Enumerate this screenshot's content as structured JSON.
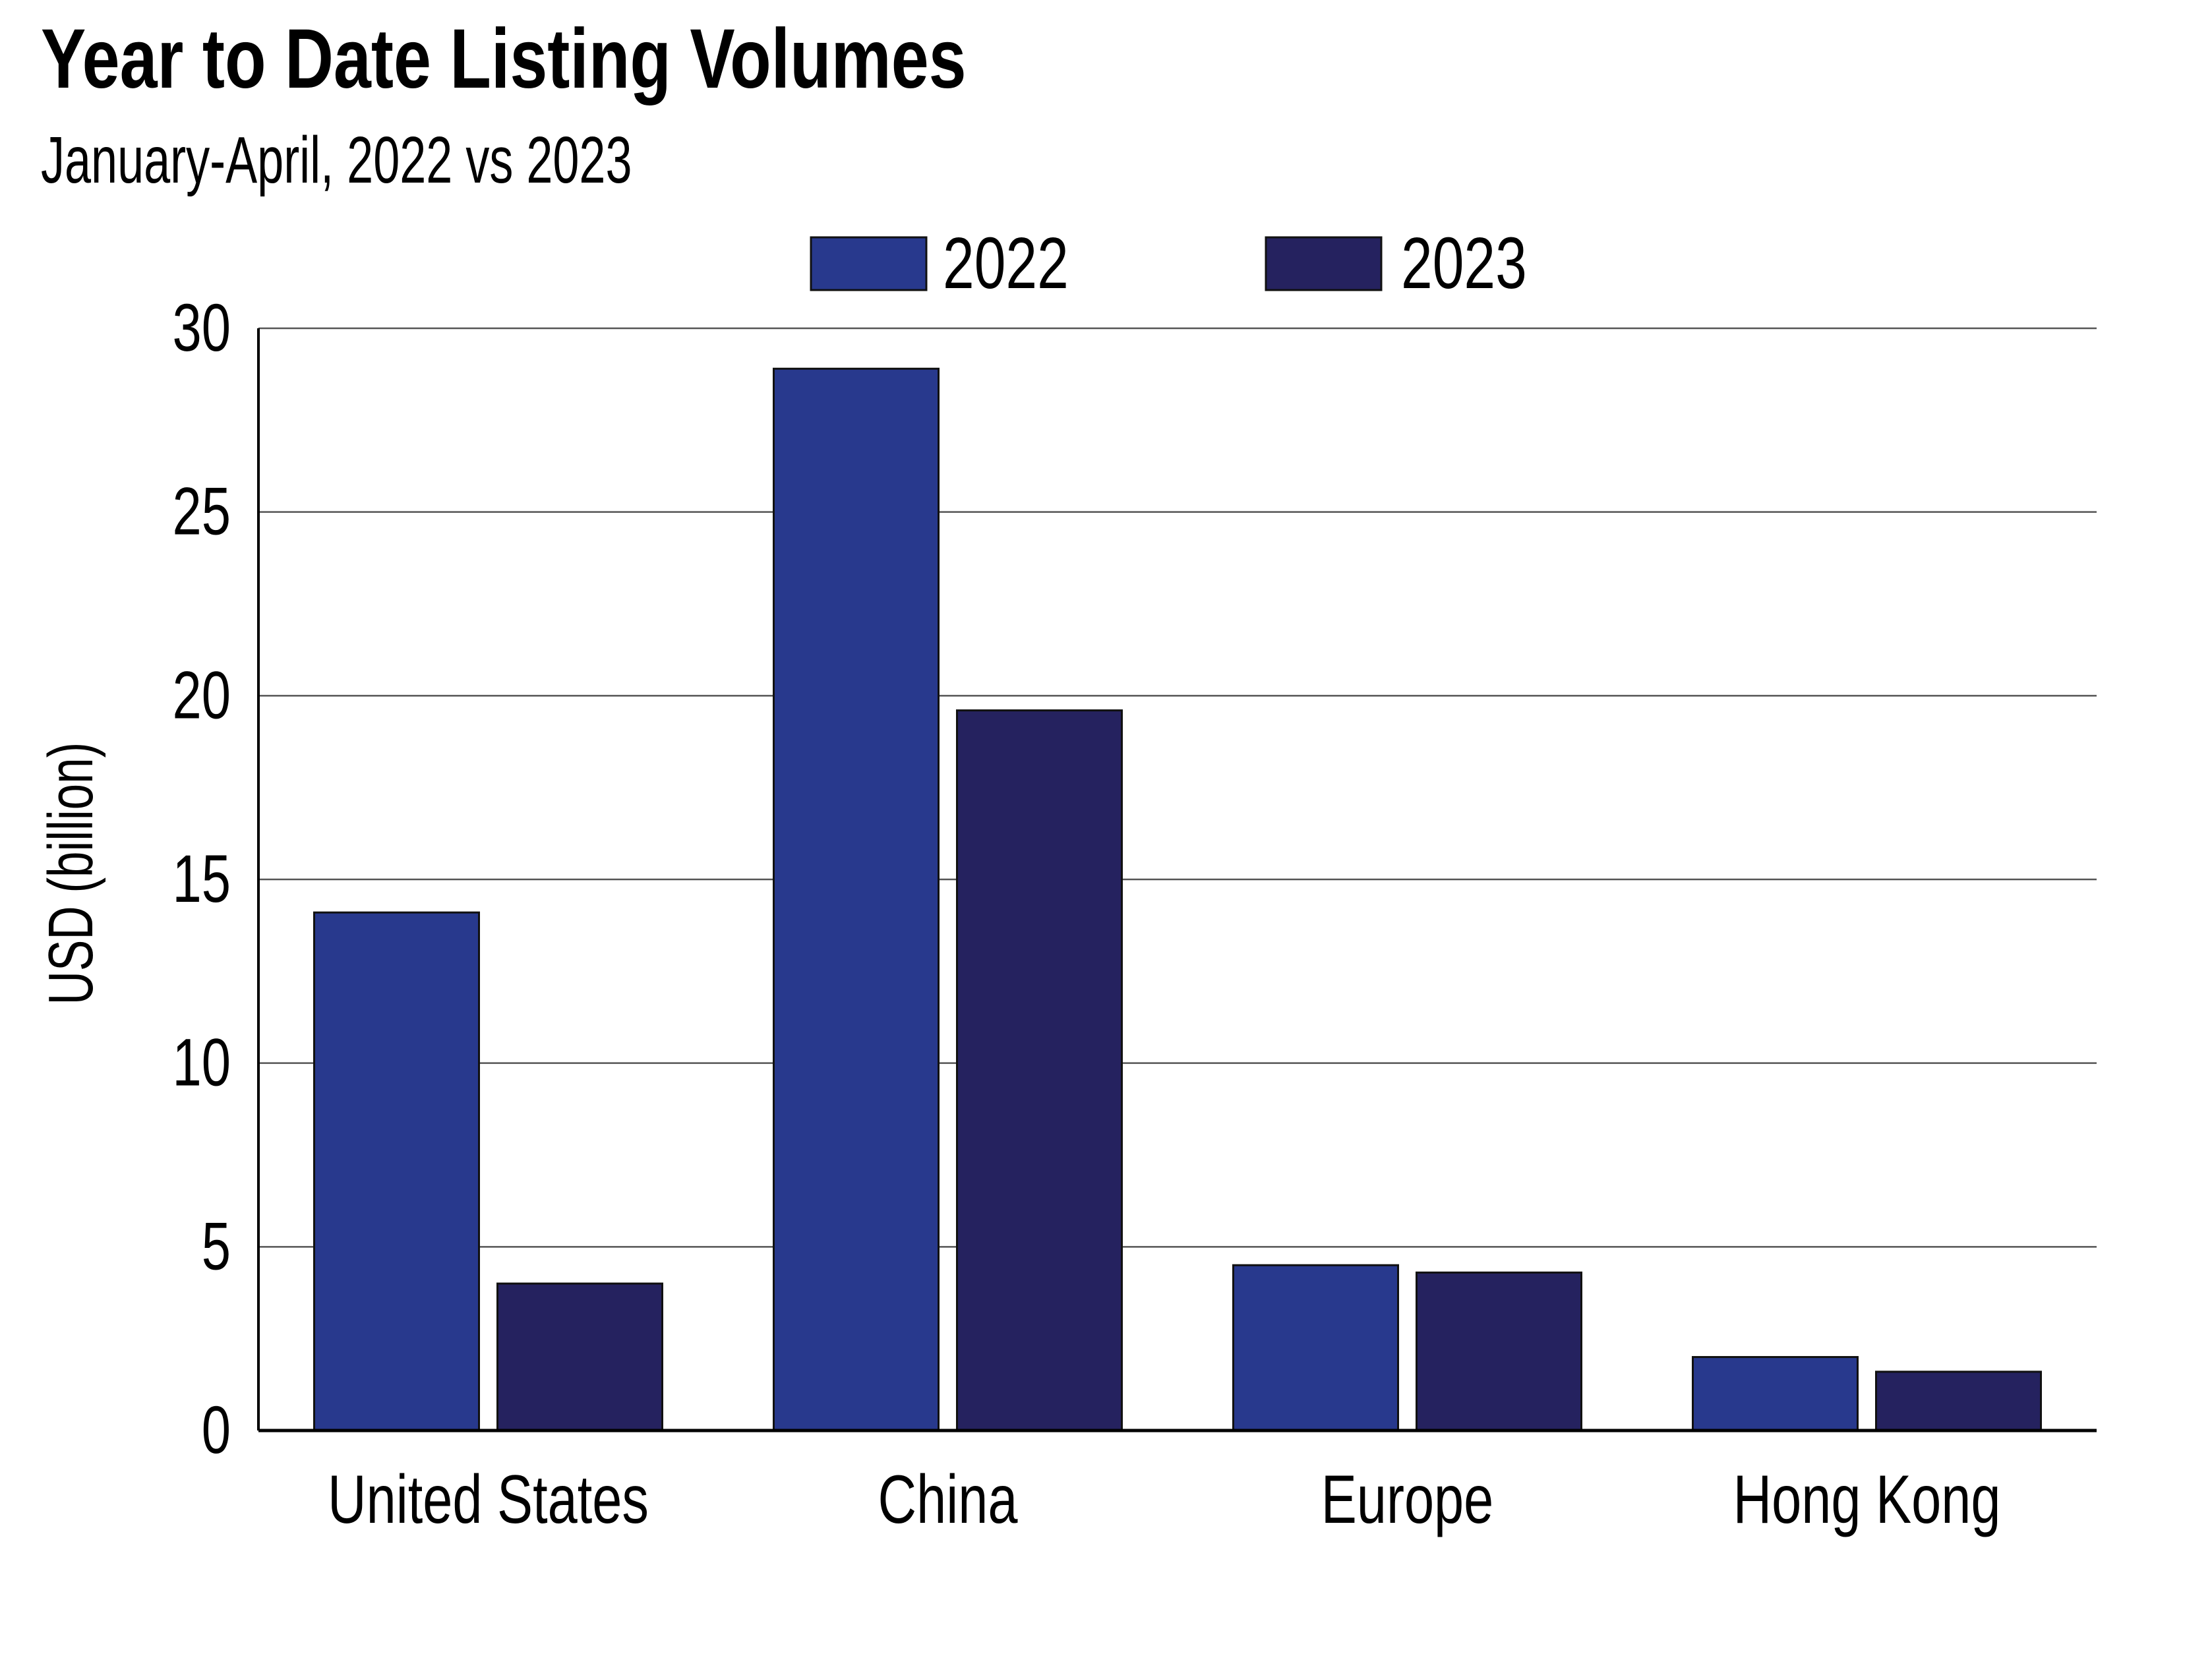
{
  "chart_data": {
    "type": "bar",
    "title": "Year to Date Listing Volumes",
    "subtitle": "January-April, 2022 vs 2023",
    "xlabel": "",
    "ylabel": "USD (billion)",
    "ylim": [
      0,
      30
    ],
    "yticks": [
      0,
      5,
      10,
      15,
      20,
      25,
      30
    ],
    "ytick_labels": [
      "0",
      "5",
      "10",
      "15",
      "20",
      "25",
      "30"
    ],
    "grid": true,
    "legend_position": "top-center",
    "categories": [
      "United States",
      "China",
      "Europe",
      "Hong Kong"
    ],
    "series": [
      {
        "name": "2022",
        "color": "#28398d",
        "values": [
          14.1,
          28.9,
          4.5,
          2.0
        ]
      },
      {
        "name": "2023",
        "color": "#25225f",
        "values": [
          4.0,
          19.6,
          4.3,
          1.6
        ]
      }
    ]
  }
}
